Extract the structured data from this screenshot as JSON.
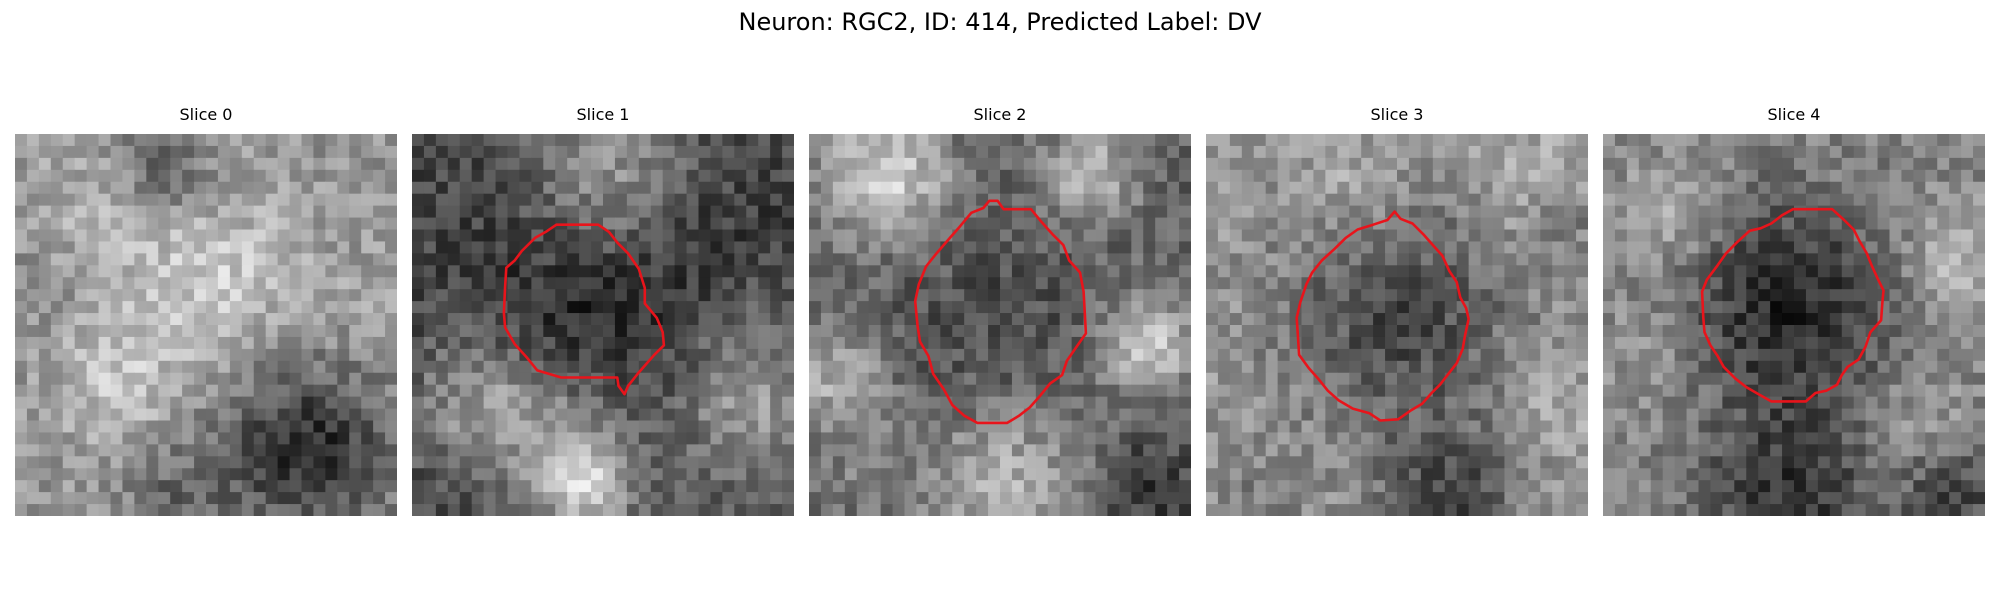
{
  "figure": {
    "title": "Neuron: RGC2, ID: 414, Predicted Label: DV"
  },
  "panels": [
    {
      "title": "Slice 0",
      "has_contour": false
    },
    {
      "title": "Slice 1",
      "has_contour": true
    },
    {
      "title": "Slice 2",
      "has_contour": true
    },
    {
      "title": "Slice 3",
      "has_contour": true
    },
    {
      "title": "Slice 4",
      "has_contour": true
    }
  ],
  "colors": {
    "contour": "#e8141b",
    "background": "#ffffff"
  }
}
